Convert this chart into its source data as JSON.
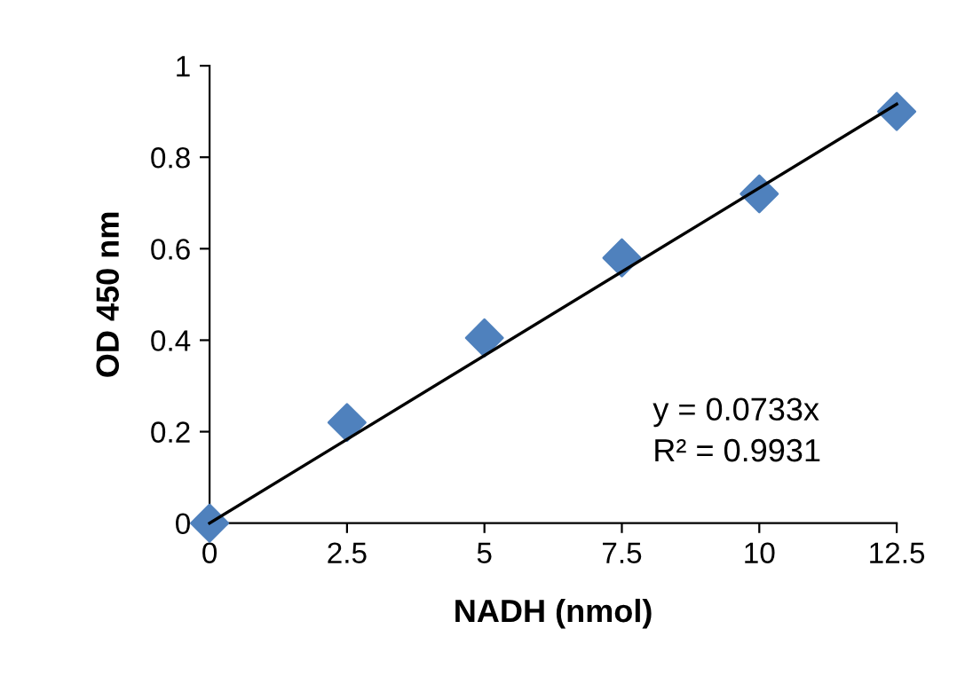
{
  "chart_data": {
    "type": "scatter",
    "xlabel": "NADH (nmol)",
    "ylabel": "OD 450 nm",
    "xlim": [
      0,
      12.5
    ],
    "xticks": [
      0,
      2.5,
      5,
      7.5,
      10,
      12.5
    ],
    "ylim": [
      0,
      1
    ],
    "yticks": [
      0,
      0.2,
      0.4,
      0.6,
      0.8,
      1
    ],
    "grid": false,
    "series": [
      {
        "marker": "diamond",
        "color": "#4f81bd",
        "x": [
          0,
          2.5,
          5,
          7.5,
          10,
          12.5
        ],
        "values": [
          0,
          0.22,
          0.405,
          0.58,
          0.72,
          0.9
        ]
      },
      {
        "type": "line",
        "marker": "none",
        "color": "#000000",
        "line_style": "solid",
        "x": [
          0,
          12.5
        ],
        "values": [
          0,
          0.916
        ]
      }
    ],
    "annotations": [
      "y = 0.0733x",
      "R² = 0.9931"
    ]
  }
}
